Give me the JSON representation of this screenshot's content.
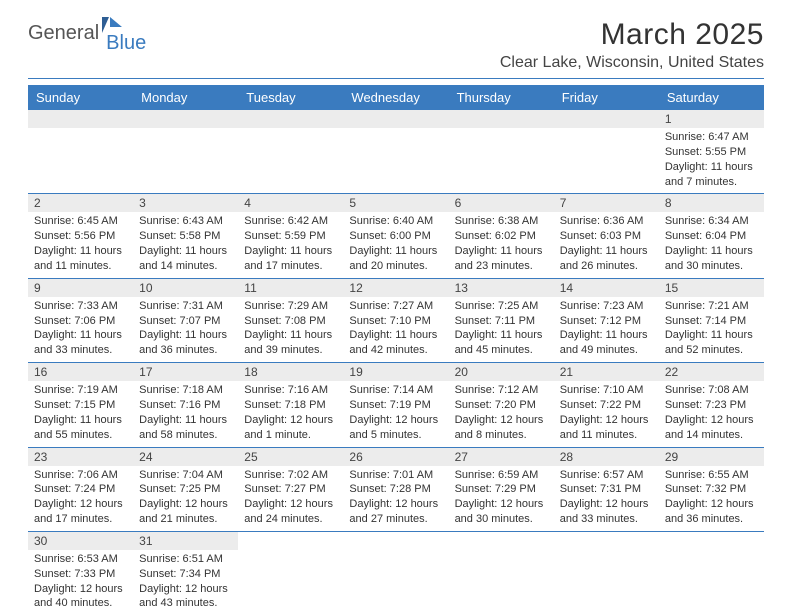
{
  "logo": {
    "part1": "General",
    "part2": "Blue"
  },
  "title": "March 2025",
  "location": "Clear Lake, Wisconsin, United States",
  "colors": {
    "accent": "#3a7bbf",
    "header_text": "#ffffff",
    "daynum_bg": "#ececec",
    "text": "#333333",
    "background": "#ffffff"
  },
  "weekdays": [
    "Sunday",
    "Monday",
    "Tuesday",
    "Wednesday",
    "Thursday",
    "Friday",
    "Saturday"
  ],
  "weeks": [
    [
      null,
      null,
      null,
      null,
      null,
      null,
      {
        "n": "1",
        "sr": "Sunrise: 6:47 AM",
        "ss": "Sunset: 5:55 PM",
        "d1": "Daylight: 11 hours",
        "d2": "and 7 minutes."
      }
    ],
    [
      {
        "n": "2",
        "sr": "Sunrise: 6:45 AM",
        "ss": "Sunset: 5:56 PM",
        "d1": "Daylight: 11 hours",
        "d2": "and 11 minutes."
      },
      {
        "n": "3",
        "sr": "Sunrise: 6:43 AM",
        "ss": "Sunset: 5:58 PM",
        "d1": "Daylight: 11 hours",
        "d2": "and 14 minutes."
      },
      {
        "n": "4",
        "sr": "Sunrise: 6:42 AM",
        "ss": "Sunset: 5:59 PM",
        "d1": "Daylight: 11 hours",
        "d2": "and 17 minutes."
      },
      {
        "n": "5",
        "sr": "Sunrise: 6:40 AM",
        "ss": "Sunset: 6:00 PM",
        "d1": "Daylight: 11 hours",
        "d2": "and 20 minutes."
      },
      {
        "n": "6",
        "sr": "Sunrise: 6:38 AM",
        "ss": "Sunset: 6:02 PM",
        "d1": "Daylight: 11 hours",
        "d2": "and 23 minutes."
      },
      {
        "n": "7",
        "sr": "Sunrise: 6:36 AM",
        "ss": "Sunset: 6:03 PM",
        "d1": "Daylight: 11 hours",
        "d2": "and 26 minutes."
      },
      {
        "n": "8",
        "sr": "Sunrise: 6:34 AM",
        "ss": "Sunset: 6:04 PM",
        "d1": "Daylight: 11 hours",
        "d2": "and 30 minutes."
      }
    ],
    [
      {
        "n": "9",
        "sr": "Sunrise: 7:33 AM",
        "ss": "Sunset: 7:06 PM",
        "d1": "Daylight: 11 hours",
        "d2": "and 33 minutes."
      },
      {
        "n": "10",
        "sr": "Sunrise: 7:31 AM",
        "ss": "Sunset: 7:07 PM",
        "d1": "Daylight: 11 hours",
        "d2": "and 36 minutes."
      },
      {
        "n": "11",
        "sr": "Sunrise: 7:29 AM",
        "ss": "Sunset: 7:08 PM",
        "d1": "Daylight: 11 hours",
        "d2": "and 39 minutes."
      },
      {
        "n": "12",
        "sr": "Sunrise: 7:27 AM",
        "ss": "Sunset: 7:10 PM",
        "d1": "Daylight: 11 hours",
        "d2": "and 42 minutes."
      },
      {
        "n": "13",
        "sr": "Sunrise: 7:25 AM",
        "ss": "Sunset: 7:11 PM",
        "d1": "Daylight: 11 hours",
        "d2": "and 45 minutes."
      },
      {
        "n": "14",
        "sr": "Sunrise: 7:23 AM",
        "ss": "Sunset: 7:12 PM",
        "d1": "Daylight: 11 hours",
        "d2": "and 49 minutes."
      },
      {
        "n": "15",
        "sr": "Sunrise: 7:21 AM",
        "ss": "Sunset: 7:14 PM",
        "d1": "Daylight: 11 hours",
        "d2": "and 52 minutes."
      }
    ],
    [
      {
        "n": "16",
        "sr": "Sunrise: 7:19 AM",
        "ss": "Sunset: 7:15 PM",
        "d1": "Daylight: 11 hours",
        "d2": "and 55 minutes."
      },
      {
        "n": "17",
        "sr": "Sunrise: 7:18 AM",
        "ss": "Sunset: 7:16 PM",
        "d1": "Daylight: 11 hours",
        "d2": "and 58 minutes."
      },
      {
        "n": "18",
        "sr": "Sunrise: 7:16 AM",
        "ss": "Sunset: 7:18 PM",
        "d1": "Daylight: 12 hours",
        "d2": "and 1 minute."
      },
      {
        "n": "19",
        "sr": "Sunrise: 7:14 AM",
        "ss": "Sunset: 7:19 PM",
        "d1": "Daylight: 12 hours",
        "d2": "and 5 minutes."
      },
      {
        "n": "20",
        "sr": "Sunrise: 7:12 AM",
        "ss": "Sunset: 7:20 PM",
        "d1": "Daylight: 12 hours",
        "d2": "and 8 minutes."
      },
      {
        "n": "21",
        "sr": "Sunrise: 7:10 AM",
        "ss": "Sunset: 7:22 PM",
        "d1": "Daylight: 12 hours",
        "d2": "and 11 minutes."
      },
      {
        "n": "22",
        "sr": "Sunrise: 7:08 AM",
        "ss": "Sunset: 7:23 PM",
        "d1": "Daylight: 12 hours",
        "d2": "and 14 minutes."
      }
    ],
    [
      {
        "n": "23",
        "sr": "Sunrise: 7:06 AM",
        "ss": "Sunset: 7:24 PM",
        "d1": "Daylight: 12 hours",
        "d2": "and 17 minutes."
      },
      {
        "n": "24",
        "sr": "Sunrise: 7:04 AM",
        "ss": "Sunset: 7:25 PM",
        "d1": "Daylight: 12 hours",
        "d2": "and 21 minutes."
      },
      {
        "n": "25",
        "sr": "Sunrise: 7:02 AM",
        "ss": "Sunset: 7:27 PM",
        "d1": "Daylight: 12 hours",
        "d2": "and 24 minutes."
      },
      {
        "n": "26",
        "sr": "Sunrise: 7:01 AM",
        "ss": "Sunset: 7:28 PM",
        "d1": "Daylight: 12 hours",
        "d2": "and 27 minutes."
      },
      {
        "n": "27",
        "sr": "Sunrise: 6:59 AM",
        "ss": "Sunset: 7:29 PM",
        "d1": "Daylight: 12 hours",
        "d2": "and 30 minutes."
      },
      {
        "n": "28",
        "sr": "Sunrise: 6:57 AM",
        "ss": "Sunset: 7:31 PM",
        "d1": "Daylight: 12 hours",
        "d2": "and 33 minutes."
      },
      {
        "n": "29",
        "sr": "Sunrise: 6:55 AM",
        "ss": "Sunset: 7:32 PM",
        "d1": "Daylight: 12 hours",
        "d2": "and 36 minutes."
      }
    ],
    [
      {
        "n": "30",
        "sr": "Sunrise: 6:53 AM",
        "ss": "Sunset: 7:33 PM",
        "d1": "Daylight: 12 hours",
        "d2": "and 40 minutes."
      },
      {
        "n": "31",
        "sr": "Sunrise: 6:51 AM",
        "ss": "Sunset: 7:34 PM",
        "d1": "Daylight: 12 hours",
        "d2": "and 43 minutes."
      },
      null,
      null,
      null,
      null,
      null
    ]
  ]
}
